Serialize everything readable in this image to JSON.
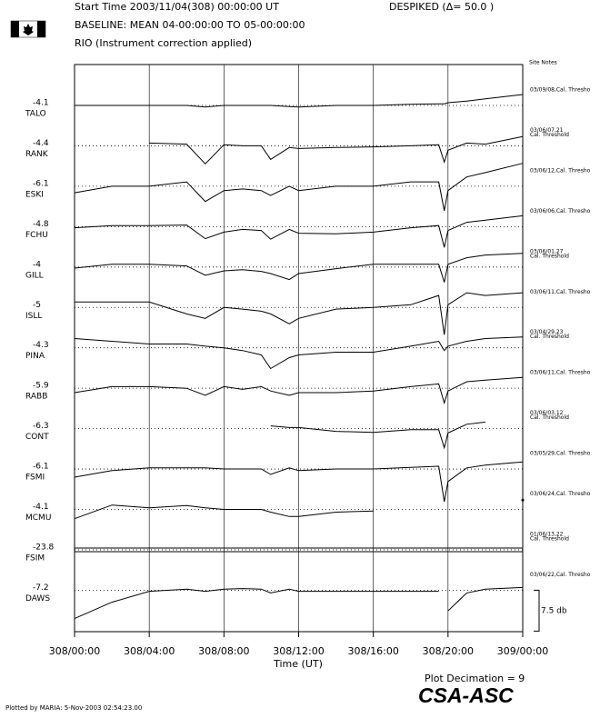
{
  "chart_data": {
    "type": "riometer_stack",
    "title": "Start Time 2003/11/04(308) 00:00:00 UT",
    "despike": "DESPIKED (Δ= 50.0  )",
    "subtitle": "BASELINE: MEAN 04-00:00:00 TO 05-00:00:00",
    "note": "RIO (Instrument correction applied)",
    "site_notes_label": "Site Notes",
    "xlabel": "Time (UT)",
    "decimation": "Plot Decimation = 9",
    "logo": "CSA-ASC",
    "footer": "Plotted by MARIA:  5-Nov-2003 02:54:23.00",
    "color": "#000000",
    "scale_bar": {
      "value": 7.5,
      "label": "7.5 db"
    },
    "xlim": [
      0,
      24
    ],
    "xticks": [
      {
        "value": 0,
        "label": "308/00:00"
      },
      {
        "value": 4,
        "label": "308/04:00"
      },
      {
        "value": 8,
        "label": "308/08:00"
      },
      {
        "value": 12,
        "label": "308/12:00"
      },
      {
        "value": 16,
        "label": "308/16:00"
      },
      {
        "value": 20,
        "label": "308/20:00"
      },
      {
        "value": 24,
        "label": "309/00:00"
      }
    ],
    "x": [
      0,
      2,
      4,
      6,
      7,
      8,
      9,
      10,
      10.5,
      11.5,
      12,
      14,
      16,
      18,
      19.5,
      19.8,
      20,
      21,
      22,
      24
    ],
    "series": [
      {
        "name": "TALO",
        "baseline": -4.1,
        "site_note": [
          "03/09/08,Cal. Thresho"
        ],
        "values": [
          0,
          0,
          0,
          0,
          -0.3,
          0,
          0,
          0,
          0,
          -0.2,
          -0.3,
          0,
          0,
          0.2,
          0.3,
          0.3,
          0.5,
          0.8,
          1.2,
          2
        ]
      },
      {
        "name": "RANK",
        "baseline": -4.4,
        "site_note": [
          "03/06/07,21",
          "Cal. Threshold"
        ],
        "values": [
          null,
          null,
          0.5,
          0.3,
          -3.3,
          0.2,
          0,
          0,
          -2.5,
          -0.3,
          -0.5,
          -0.3,
          -0.2,
          0,
          0.2,
          -3,
          -0.8,
          0.5,
          0.3,
          1.7
        ]
      },
      {
        "name": "ESKI",
        "baseline": -6.1,
        "site_note": [
          "03/06/12,Cal. Thresho"
        ],
        "values": [
          -1.2,
          0,
          0,
          0.8,
          -2.8,
          -0.8,
          -0.5,
          -0.8,
          -1.7,
          0,
          -0.8,
          0,
          0,
          0.8,
          0.8,
          -4.5,
          -0.8,
          1.7,
          2.5,
          4.2
        ]
      },
      {
        "name": "FCHU",
        "baseline": -4.8,
        "site_note": [
          "03/06/06,Cal. Thresho"
        ],
        "values": [
          -0.2,
          0.2,
          0.2,
          0.3,
          -2.2,
          -1,
          -0.5,
          -0.7,
          -2.3,
          -0.5,
          -1.2,
          -1.3,
          -1,
          -0.2,
          0.2,
          -3.8,
          -0.7,
          0.8,
          1.2,
          2
        ]
      },
      {
        "name": "GILL",
        "baseline": -4.0,
        "site_note": [
          "03/06/01,27",
          "Cal. Threshold"
        ],
        "values": [
          -0.2,
          0.5,
          0.5,
          0.2,
          -1.5,
          -0.7,
          -0.5,
          -0.8,
          -1.2,
          -2.3,
          -1.2,
          -0.3,
          0.5,
          0.5,
          0.5,
          -2.8,
          0.5,
          1.7,
          2.2,
          2.5
        ]
      },
      {
        "name": "ISLL",
        "baseline": -5.0,
        "site_note": [
          "03/06/11,Cal. Thresho"
        ],
        "values": [
          1,
          1,
          1,
          -1.2,
          -2,
          0,
          -0.3,
          -0.7,
          -1.2,
          -3,
          -2,
          -0.3,
          0,
          0.5,
          2.2,
          -5,
          0.5,
          2.7,
          2.2,
          2.7
        ]
      },
      {
        "name": "PINA",
        "baseline": -4.3,
        "site_note": [
          "03/04/29,23",
          "Cal. Threshold"
        ],
        "values": [
          1.7,
          1.2,
          0.7,
          0.7,
          0.3,
          0,
          -0.5,
          -1.3,
          -3.8,
          -1.8,
          -1.3,
          -0.8,
          -0.8,
          0.3,
          1.2,
          -0.5,
          0.3,
          1.2,
          1.7,
          2
        ]
      },
      {
        "name": "RABB",
        "baseline": -5.9,
        "site_note": [
          "03/06/11,Cal. Thresho"
        ],
        "values": [
          -0.8,
          0.3,
          0.3,
          0,
          -1.3,
          0.3,
          -0.2,
          0.3,
          -0.5,
          -1.3,
          -0.8,
          -0.8,
          -0.5,
          0.3,
          0.8,
          -2.7,
          -0.5,
          1.2,
          1.5,
          2
        ]
      },
      {
        "name": "CONT",
        "baseline": -6.3,
        "site_note": [
          "03/06/03,12",
          "Cal. Threshold"
        ],
        "values": [
          null,
          null,
          null,
          null,
          null,
          null,
          null,
          null,
          0.5,
          0.2,
          0.2,
          -0.5,
          -0.7,
          -0.2,
          -0.2,
          -3.5,
          -0.8,
          0.8,
          1.2,
          null
        ]
      },
      {
        "name": "FSMI",
        "baseline": -6.1,
        "site_note": [
          "03/05/29,Cal. Thresho"
        ],
        "values": [
          -1.5,
          -0.3,
          0.2,
          0.2,
          0.2,
          0,
          0,
          0,
          -1,
          0.2,
          -0.3,
          0,
          0,
          0.3,
          0.5,
          -6,
          -2.3,
          0.2,
          0.7,
          1.3
        ]
      },
      {
        "name": "MCMU",
        "baseline": -4.1,
        "site_note": [
          "03/06/24,Cal. Thresho"
        ],
        "values": [
          -1.7,
          0.8,
          0.3,
          0.7,
          0.3,
          0,
          0,
          0,
          -0.5,
          -1.3,
          -1.3,
          -0.5,
          -0.3,
          null,
          null,
          null,
          null,
          null,
          null,
          1.7
        ]
      },
      {
        "name": "FSIM",
        "baseline": -23.8,
        "site_note": [
          "01/06/13,22",
          "Cal. Threshold"
        ],
        "values": [
          null,
          null,
          null,
          null,
          null,
          null,
          null,
          null,
          null,
          null,
          null,
          null,
          null,
          null,
          null,
          null,
          null,
          null,
          null,
          null
        ]
      },
      {
        "name": "DAWS",
        "baseline": -7.2,
        "site_note": [
          "03/06/22,Cal. Thresho"
        ],
        "values": [
          -5.2,
          -2.2,
          -0.2,
          0.2,
          -0.2,
          0.2,
          0.3,
          0.2,
          -0.5,
          0.2,
          -0.2,
          -0.2,
          -0.2,
          -0.2,
          -0.2,
          null,
          -3.8,
          -0.5,
          0.2,
          0.5
        ]
      }
    ]
  }
}
